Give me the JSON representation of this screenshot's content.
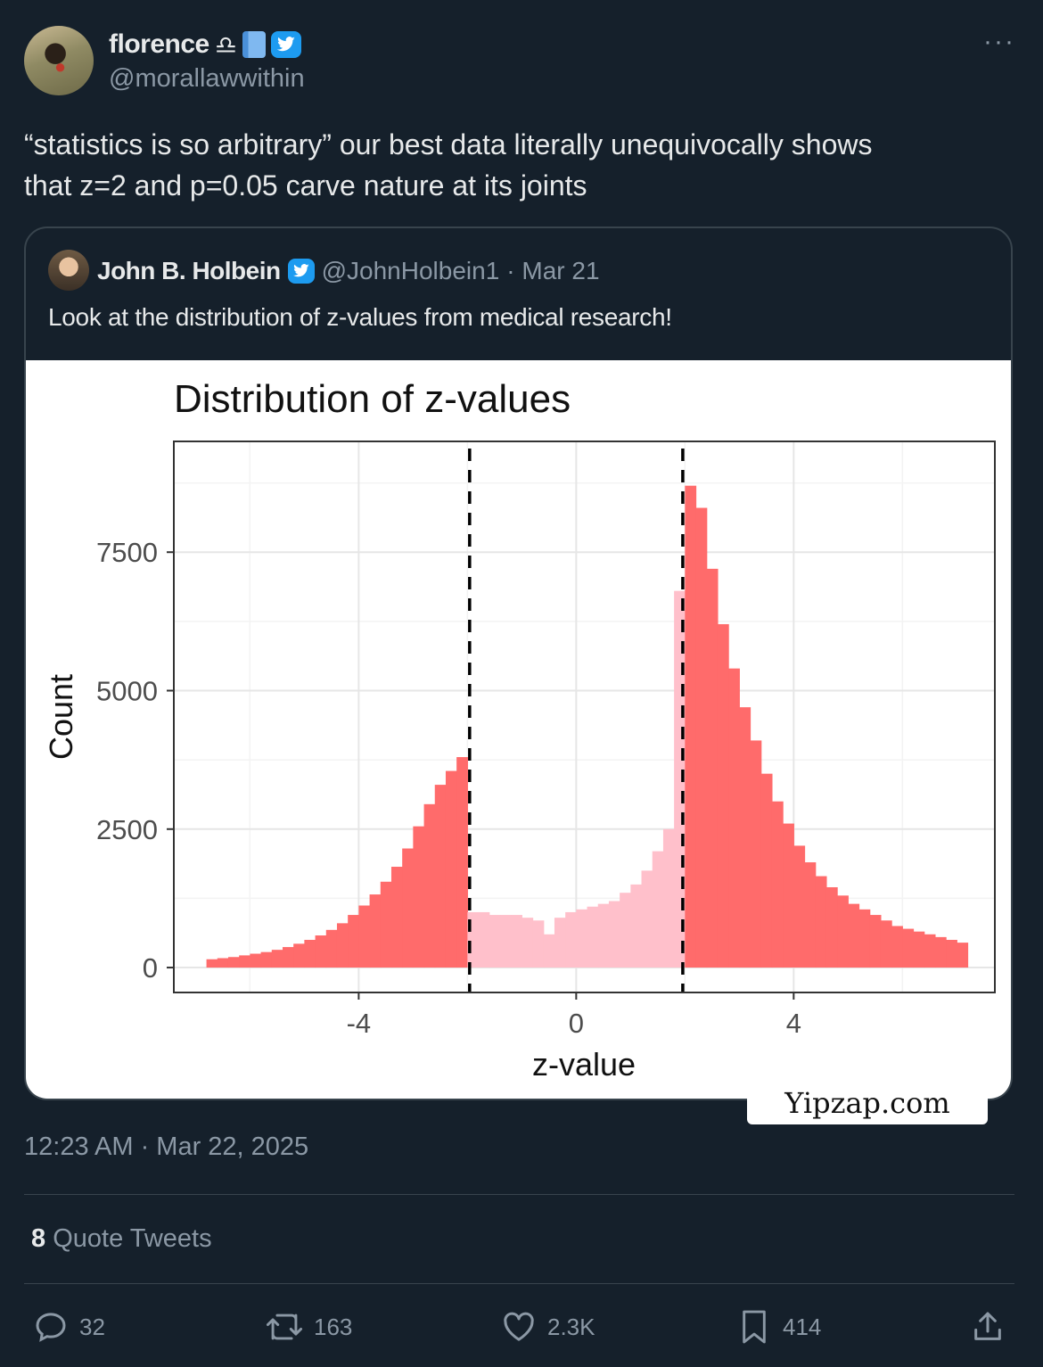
{
  "author": {
    "name": "florence",
    "handle": "@morallawwithin"
  },
  "tweet": {
    "text": "“statistics is so arbitrary” our best data literally unequivocally shows\nthat z=2 and p=0.05 carve nature at its joints",
    "timestamp": "12:23 AM · Mar 22, 2025"
  },
  "quoted": {
    "name": "John B. Holbein",
    "handle": "@JohnHolbein1",
    "date": "· Mar 21",
    "text": "Look at the distribution of z-values from medical research!"
  },
  "chart_data": {
    "type": "bar",
    "title": "Distribution of z-values",
    "xlabel": "z-value",
    "ylabel": "Count",
    "xlim": [
      -7.4,
      7.7
    ],
    "ylim": [
      -450,
      9500
    ],
    "x_ticks": [
      -4,
      0,
      4
    ],
    "x_tick_labels": [
      "-4",
      "0",
      "4"
    ],
    "y_ticks": [
      0,
      2500,
      5000,
      7500
    ],
    "y_tick_labels": [
      "0",
      "2500",
      "5000",
      "7500"
    ],
    "thresholds": [
      -1.96,
      1.96
    ],
    "grid": true,
    "colors": {
      "significant": "#ff6b6b",
      "nonsignificant": "#ffc0cb"
    },
    "bin_width": 0.2,
    "x": [
      -6.7,
      -6.5,
      -6.3,
      -6.1,
      -5.9,
      -5.7,
      -5.5,
      -5.3,
      -5.1,
      -4.9,
      -4.7,
      -4.5,
      -4.3,
      -4.1,
      -3.9,
      -3.7,
      -3.5,
      -3.3,
      -3.1,
      -2.9,
      -2.7,
      -2.5,
      -2.3,
      -2.1,
      -1.9,
      -1.7,
      -1.5,
      -1.3,
      -1.1,
      -0.9,
      -0.7,
      -0.5,
      -0.3,
      -0.1,
      0.1,
      0.3,
      0.5,
      0.7,
      0.9,
      1.1,
      1.3,
      1.5,
      1.7,
      1.9,
      2.1,
      2.3,
      2.5,
      2.7,
      2.9,
      3.1,
      3.3,
      3.5,
      3.7,
      3.9,
      4.1,
      4.3,
      4.5,
      4.7,
      4.9,
      5.1,
      5.3,
      5.5,
      5.7,
      5.9,
      6.1,
      6.3,
      6.5,
      6.7,
      6.9,
      7.1
    ],
    "values": [
      150,
      170,
      190,
      220,
      250,
      280,
      320,
      370,
      430,
      500,
      580,
      680,
      800,
      950,
      1120,
      1320,
      1550,
      1820,
      2150,
      2550,
      2950,
      3300,
      3550,
      3800,
      1000,
      1000,
      950,
      950,
      950,
      900,
      850,
      600,
      900,
      1000,
      1050,
      1100,
      1150,
      1200,
      1350,
      1500,
      1750,
      2100,
      2500,
      6800,
      8700,
      8300,
      7200,
      6200,
      5400,
      4700,
      4100,
      3500,
      3000,
      2600,
      2200,
      1900,
      1650,
      1450,
      1300,
      1150,
      1050,
      950,
      850,
      750,
      700,
      650,
      600,
      550,
      500,
      450
    ]
  },
  "watermark": "Yipzap.com",
  "stats": {
    "quote_count": "8",
    "quote_label": "Quote Tweets",
    "replies": "32",
    "retweets": "163",
    "likes": "2.3K",
    "bookmarks": "414"
  }
}
